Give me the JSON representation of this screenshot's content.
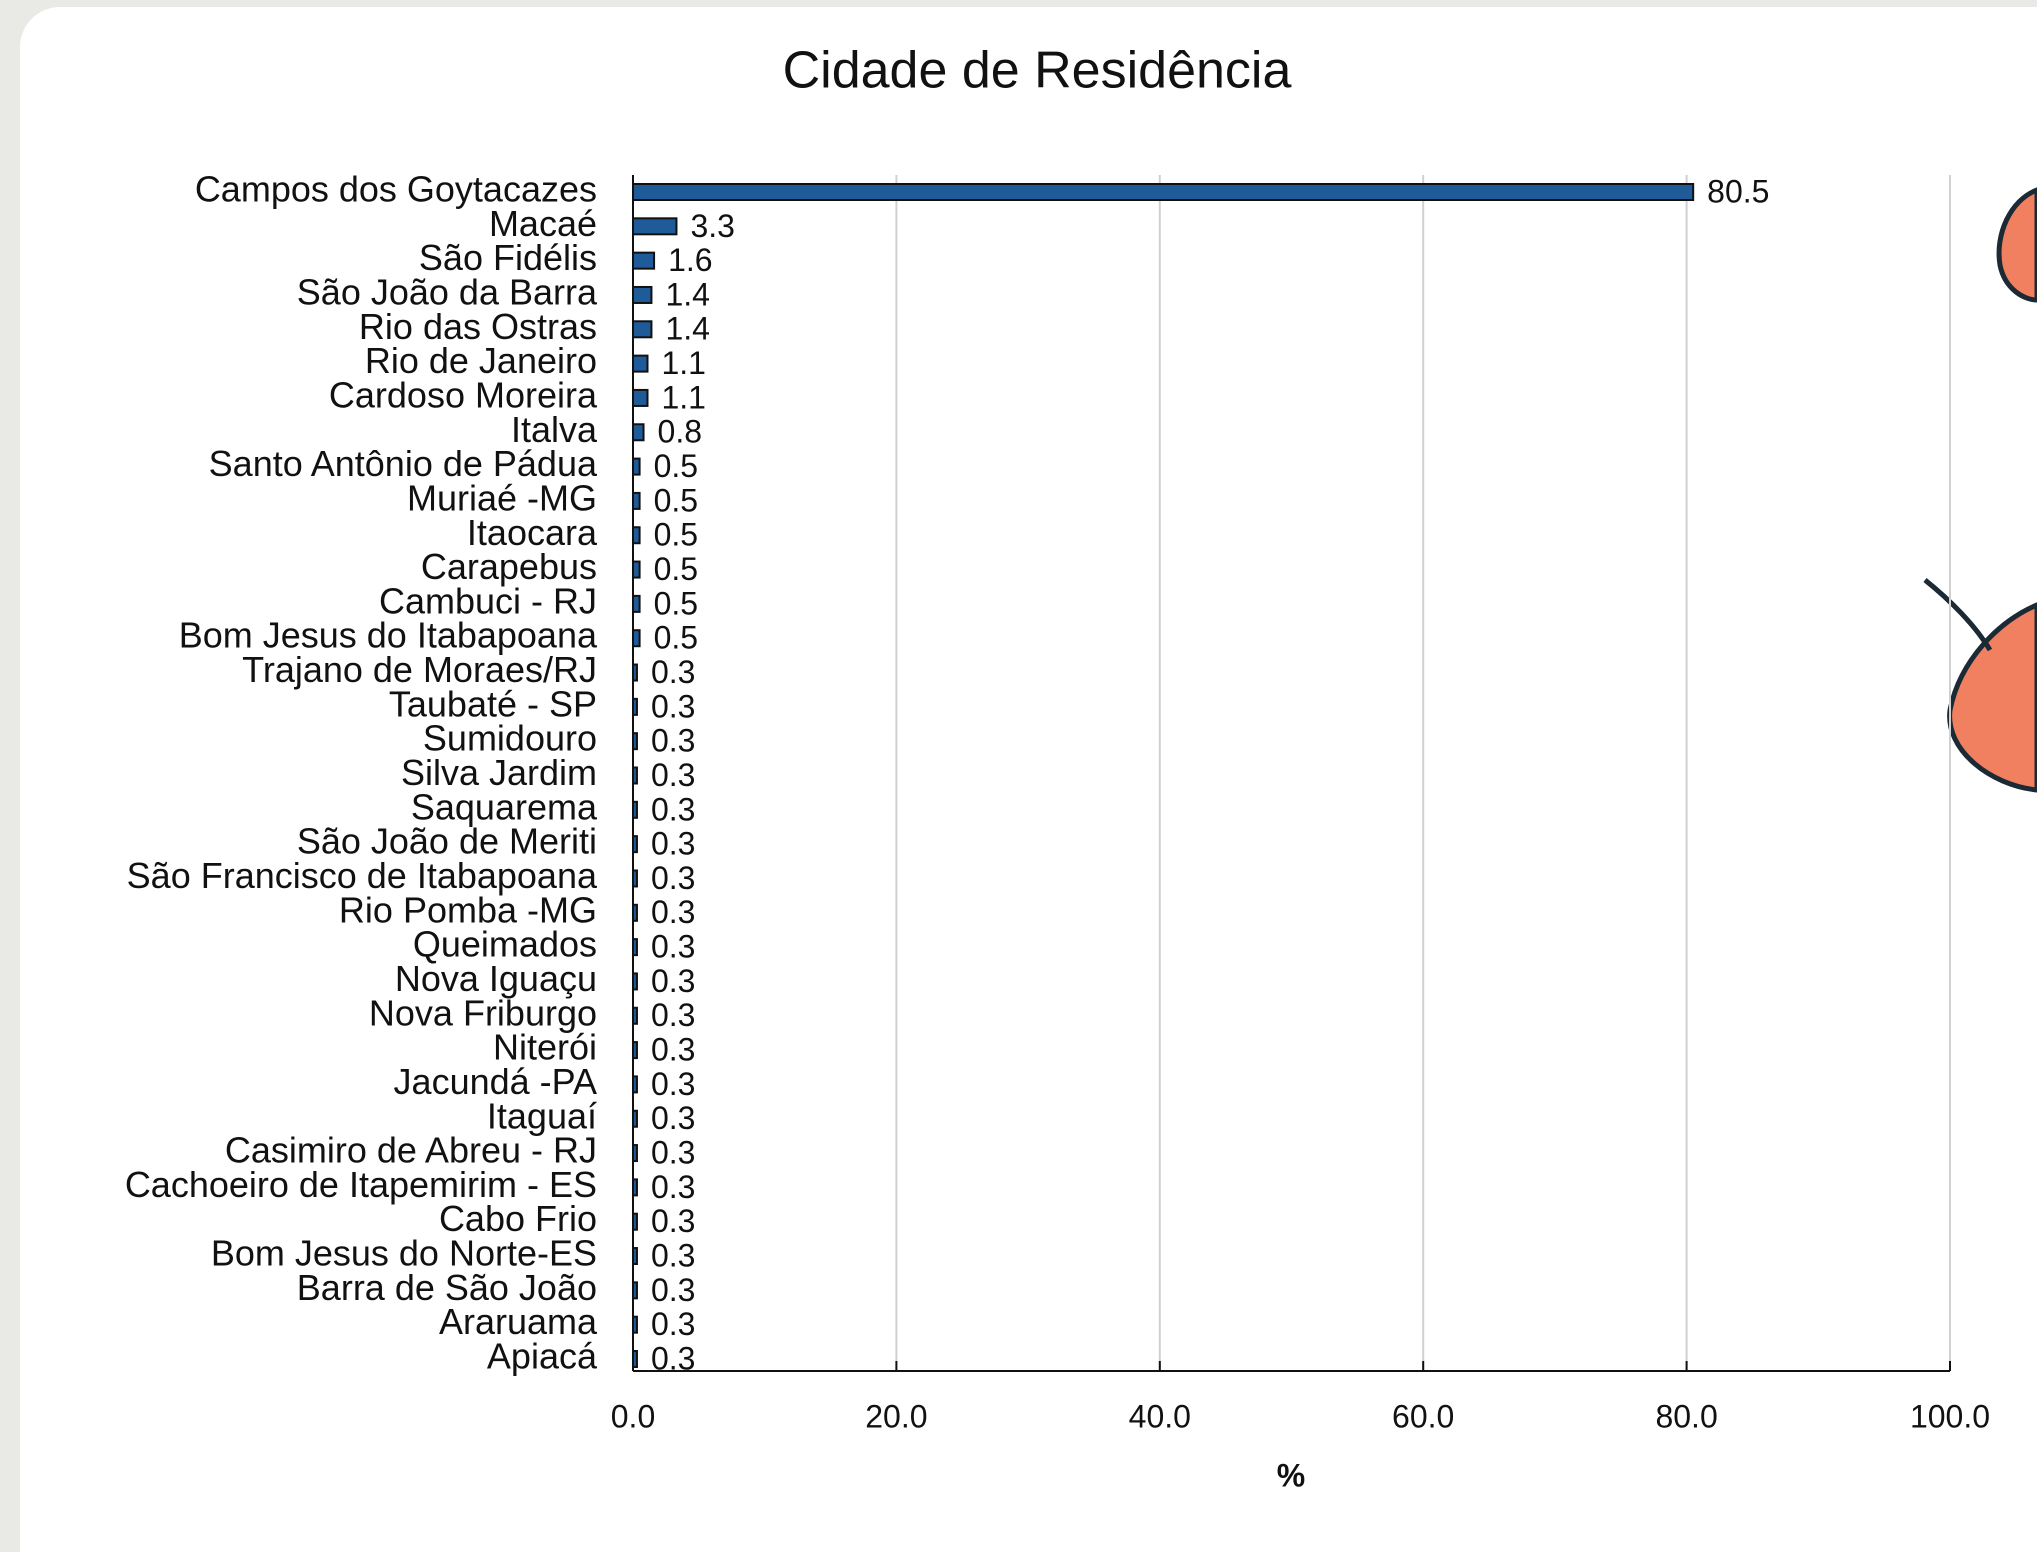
{
  "chart_data": {
    "type": "hbar",
    "title": "Cidade de Residência",
    "x_label": "%",
    "categories": [
      "Campos dos Goytacazes",
      "Macaé",
      "São Fidélis",
      "São João da Barra",
      "Rio das Ostras",
      "Rio de Janeiro",
      "Cardoso Moreira",
      "Italva",
      "Santo Antônio de Pádua",
      "Muriaé -MG",
      "Itaocara",
      "Carapebus",
      "Cambuci - RJ",
      "Bom Jesus do Itabapoana",
      "Trajano de Moraes/RJ",
      "Taubaté - SP",
      "Sumidouro",
      "Silva Jardim",
      "Saquarema",
      "São João de Meriti",
      "São Francisco de Itabapoana",
      "Rio Pomba -MG",
      "Queimados",
      "Nova Iguaçu",
      "Nova Friburgo",
      "Niterói",
      "Jacundá -PA",
      "Itaguaí",
      "Casimiro de Abreu - RJ",
      "Cachoeiro de Itapemirim - ES",
      "Cabo Frio",
      "Bom Jesus do Norte-ES",
      "Barra de São João",
      "Araruama",
      "Apiacá"
    ],
    "values": [
      80.5,
      3.3,
      1.6,
      1.4,
      1.4,
      1.1,
      1.1,
      0.8,
      0.5,
      0.5,
      0.5,
      0.5,
      0.5,
      0.5,
      0.3,
      0.3,
      0.3,
      0.3,
      0.3,
      0.3,
      0.3,
      0.3,
      0.3,
      0.3,
      0.3,
      0.3,
      0.3,
      0.3,
      0.3,
      0.3,
      0.3,
      0.3,
      0.3,
      0.3,
      0.3
    ],
    "color": "#1f5a99",
    "xlim": [
      0,
      100
    ],
    "xticks": [
      {
        "value": 0,
        "label": "0.0"
      },
      {
        "value": 20,
        "label": "20.0"
      },
      {
        "value": 40,
        "label": "40.0"
      },
      {
        "value": 60,
        "label": "60.0"
      },
      {
        "value": 80,
        "label": "80.0"
      },
      {
        "value": 100,
        "label": "100.0"
      }
    ],
    "grid": true
  }
}
